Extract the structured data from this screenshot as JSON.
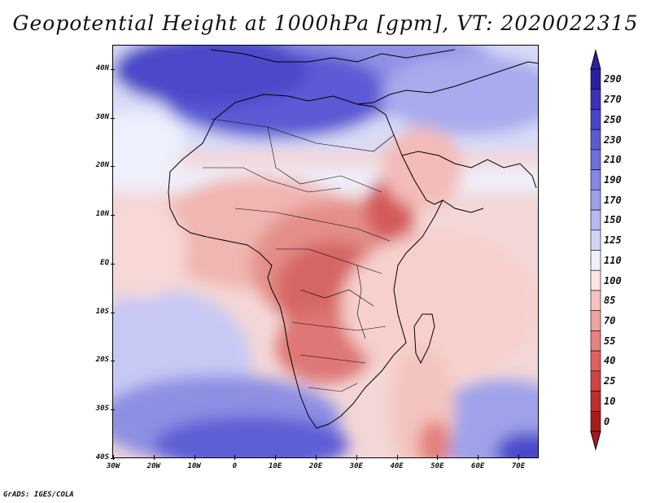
{
  "title": "Geopotential Height at 1000hPa [gpm], VT: 2020022315",
  "credit": "GrADS: IGES/COLA",
  "lat_labels": [
    "40N",
    "30N",
    "20N",
    "10N",
    "EQ",
    "10S",
    "20S",
    "30S",
    "40S"
  ],
  "lon_labels": [
    "30W",
    "20W",
    "10W",
    "0",
    "10E",
    "20E",
    "30E",
    "40E",
    "50E",
    "60E",
    "70E"
  ],
  "colorbar": {
    "levels": [
      "290",
      "270",
      "250",
      "230",
      "210",
      "190",
      "170",
      "150",
      "125",
      "110",
      "100",
      "85",
      "70",
      "55",
      "40",
      "25",
      "10",
      "0"
    ],
    "colors": [
      "#2c1fa0",
      "#3b32b8",
      "#4a45c8",
      "#5b5ad2",
      "#6f70db",
      "#8586e3",
      "#9d9fea",
      "#b7b9f1",
      "#d3d5f7",
      "#eef0fd",
      "#fce4e2",
      "#f6c3bf",
      "#efa29e",
      "#e8807d",
      "#de615f",
      "#d14444",
      "#bf2e2e",
      "#a61c1c"
    ]
  }
}
